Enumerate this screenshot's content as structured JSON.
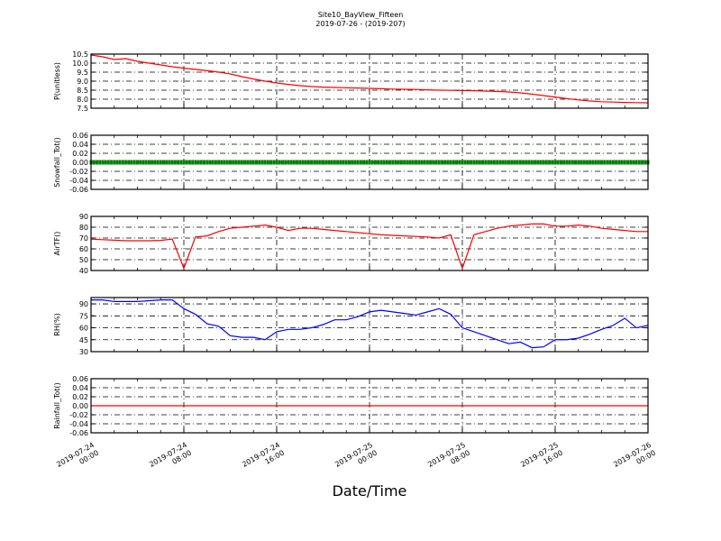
{
  "chart_data": {
    "type": "line",
    "title": "Site10_BayView_Fifteen",
    "subtitle": "2019-07-26 - (2019-207)",
    "xlabel": "Date/Time",
    "x_unit": "hour offset from 2019-07-24 00:00 is NOT shown; x = hourly timestamps",
    "x": [
      "2019-07-24 00:00",
      "2019-07-24 01:00",
      "2019-07-24 02:00",
      "2019-07-24 03:00",
      "2019-07-24 04:00",
      "2019-07-24 05:00",
      "2019-07-24 06:00",
      "2019-07-24 07:00",
      "2019-07-24 08:00",
      "2019-07-24 09:00",
      "2019-07-24 10:00",
      "2019-07-24 11:00",
      "2019-07-24 12:00",
      "2019-07-24 13:00",
      "2019-07-24 14:00",
      "2019-07-24 15:00",
      "2019-07-24 16:00",
      "2019-07-24 17:00",
      "2019-07-24 18:00",
      "2019-07-24 19:00",
      "2019-07-24 20:00",
      "2019-07-24 21:00",
      "2019-07-24 22:00",
      "2019-07-24 23:00",
      "2019-07-25 00:00",
      "2019-07-25 01:00",
      "2019-07-25 02:00",
      "2019-07-25 03:00",
      "2019-07-25 04:00",
      "2019-07-25 05:00",
      "2019-07-25 06:00",
      "2019-07-25 07:00",
      "2019-07-25 08:00",
      "2019-07-25 09:00",
      "2019-07-25 10:00",
      "2019-07-25 11:00",
      "2019-07-25 12:00",
      "2019-07-25 13:00",
      "2019-07-25 14:00",
      "2019-07-25 15:00",
      "2019-07-25 16:00",
      "2019-07-25 17:00",
      "2019-07-25 18:00",
      "2019-07-25 19:00",
      "2019-07-25 20:00",
      "2019-07-25 21:00",
      "2019-07-25 22:00",
      "2019-07-25 23:00",
      "2019-07-26 00:00"
    ],
    "xlim": [
      "2019-07-24 00:00",
      "2019-07-26 00:00"
    ],
    "xticks": [
      {
        "line1": "2019-07-24",
        "line2": "00:00"
      },
      {
        "line1": "2019-07-24",
        "line2": "08:00"
      },
      {
        "line1": "2019-07-24",
        "line2": "16:00"
      },
      {
        "line1": "2019-07-25",
        "line2": "00:00"
      },
      {
        "line1": "2019-07-25",
        "line2": "08:00"
      },
      {
        "line1": "2019-07-25",
        "line2": "16:00"
      },
      {
        "line1": "2019-07-26",
        "line2": "00:00"
      }
    ],
    "grid": true,
    "panels": [
      {
        "ylabel": "P(unitless)",
        "color": "#ff0000",
        "ylim": [
          7.5,
          10.5
        ],
        "yticks": [
          "7.5",
          "8.0",
          "8.5",
          "9.0",
          "9.5",
          "10.0",
          "10.5"
        ],
        "style": "line",
        "values": [
          10.45,
          10.35,
          10.2,
          10.25,
          10.1,
          10.0,
          9.9,
          9.8,
          9.72,
          9.65,
          9.58,
          9.5,
          9.4,
          9.25,
          9.12,
          9.0,
          8.9,
          8.82,
          8.75,
          8.7,
          8.67,
          8.65,
          8.63,
          8.62,
          8.6,
          8.58,
          8.56,
          8.55,
          8.54,
          8.52,
          8.5,
          8.49,
          8.48,
          8.47,
          8.45,
          8.43,
          8.4,
          8.35,
          8.28,
          8.2,
          8.12,
          8.03,
          7.96,
          7.9,
          7.86,
          7.84,
          7.82,
          7.81,
          7.8
        ]
      },
      {
        "ylabel": "Snowfall_Tot()",
        "color": "#008000",
        "ylim": [
          -0.06,
          0.06
        ],
        "yticks": [
          "-0.06",
          "-0.04",
          "-0.02",
          "0.00",
          "0.02",
          "0.04",
          "0.06"
        ],
        "style": "markers",
        "values": [
          0,
          0,
          0,
          0,
          0,
          0,
          0,
          0,
          0,
          0,
          0,
          0,
          0,
          0,
          0,
          0,
          0,
          0,
          0,
          0,
          0,
          0,
          0,
          0,
          0,
          0,
          0,
          0,
          0,
          0,
          0,
          0,
          0,
          0,
          0,
          0,
          0,
          0,
          0,
          0,
          0,
          0,
          0,
          0,
          0,
          0,
          0,
          0,
          0
        ]
      },
      {
        "ylabel": "AirTF()",
        "color": "#ff0000",
        "ylim": [
          40,
          90
        ],
        "yticks": [
          "40",
          "50",
          "60",
          "70",
          "80",
          "90"
        ],
        "style": "line",
        "values": [
          69,
          68.5,
          68,
          67.5,
          67.5,
          67.5,
          67.8,
          69,
          42,
          71,
          72,
          76,
          79,
          80,
          81,
          82,
          80,
          77,
          79,
          79,
          78,
          77,
          76,
          75,
          74,
          73,
          72.5,
          72,
          71.5,
          71,
          70,
          73,
          42,
          73,
          76,
          79,
          81,
          82,
          83,
          83,
          81,
          81,
          82,
          81,
          79,
          78,
          77,
          76,
          76
        ]
      },
      {
        "ylabel": "RH(%)",
        "color": "#0000ff",
        "ylim": [
          30,
          98
        ],
        "yticks": [
          "30",
          "45",
          "60",
          "75",
          "90"
        ],
        "style": "line",
        "values": [
          95,
          95,
          93,
          93,
          93,
          94,
          95,
          95,
          84,
          77,
          65,
          62,
          50,
          48,
          48,
          45,
          55,
          58,
          58,
          60,
          64,
          70,
          70,
          74,
          80,
          82,
          80,
          78,
          76,
          80,
          84,
          77,
          60,
          55,
          50,
          45,
          40,
          42,
          35,
          36,
          45,
          45,
          47,
          52,
          58,
          63,
          72,
          60,
          63
        ]
      },
      {
        "ylabel": "Rainfall_Tot()",
        "color": "#ff0000",
        "ylim": [
          -0.06,
          0.06
        ],
        "yticks": [
          "-0.06",
          "-0.04",
          "-0.02",
          "0.00",
          "0.02",
          "0.04",
          "0.06"
        ],
        "style": "line",
        "values": [
          0,
          0,
          0,
          0,
          0,
          0,
          0,
          0,
          0,
          0,
          0,
          0,
          0,
          0,
          0,
          0,
          0,
          0,
          0,
          0,
          0,
          0,
          0,
          0,
          0,
          0,
          0,
          0,
          0,
          0,
          0,
          0,
          0,
          0,
          0,
          0,
          0,
          0,
          0,
          0,
          0,
          0,
          0,
          0,
          0,
          0,
          0,
          0,
          0
        ]
      }
    ]
  }
}
